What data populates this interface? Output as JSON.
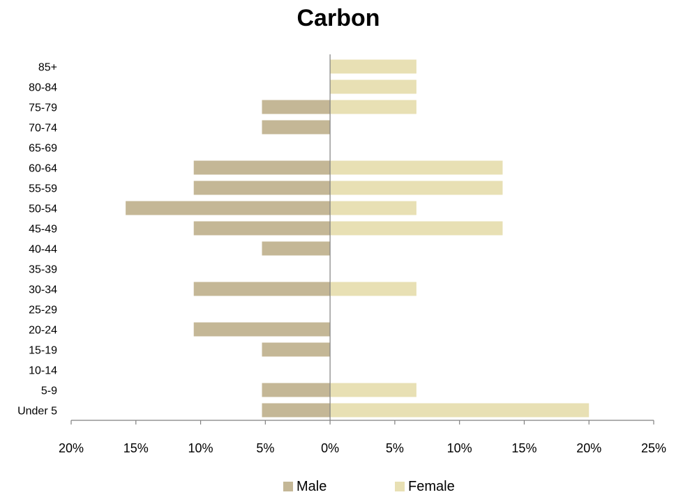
{
  "chart_data": {
    "type": "bar",
    "orientation": "horizontal",
    "title": "Carbon",
    "categories": [
      "Under 5",
      "5-9",
      "10-14",
      "15-19",
      "20-24",
      "25-29",
      "30-34",
      "35-39",
      "40-44",
      "45-49",
      "50-54",
      "55-59",
      "60-64",
      "65-69",
      "70-74",
      "75-79",
      "80-84",
      "85+"
    ],
    "series": [
      {
        "name": "Male",
        "color": "#c4b796",
        "values": [
          5.26,
          5.26,
          0,
          5.26,
          10.53,
          0,
          10.53,
          0,
          5.26,
          10.53,
          15.79,
          10.53,
          10.53,
          0,
          5.26,
          5.26,
          0,
          0
        ]
      },
      {
        "name": "Female",
        "color": "#e8e0b4",
        "values": [
          20.0,
          6.67,
          0,
          0,
          0,
          0,
          6.67,
          0,
          0,
          13.33,
          6.67,
          13.33,
          13.33,
          0,
          0,
          6.67,
          6.67,
          6.67
        ]
      }
    ],
    "xlim": [
      -20,
      25
    ],
    "xticks": [
      -20,
      -15,
      -10,
      -5,
      0,
      5,
      10,
      15,
      20,
      25
    ],
    "xtick_labels": [
      "20%",
      "15%",
      "10%",
      "5%",
      "0%",
      "5%",
      "10%",
      "15%",
      "20%",
      "25%"
    ],
    "legend_position": "bottom",
    "grid": false,
    "axis_color": "#808080"
  }
}
